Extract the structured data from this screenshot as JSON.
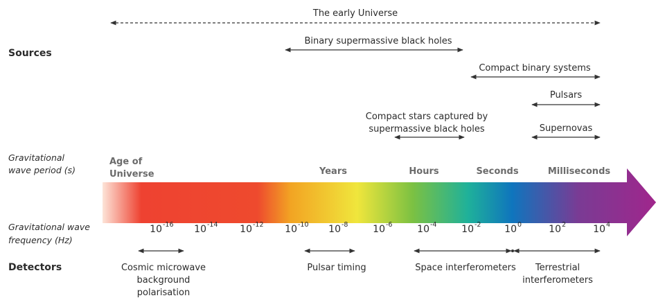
{
  "sections": {
    "sources": "Sources",
    "period": [
      "Gravitational",
      "wave period (s)"
    ],
    "frequency": [
      "Gravitational wave",
      "frequency (Hz)"
    ],
    "detectors": "Detectors"
  },
  "sources": [
    {
      "lines": [
        "The early Universe"
      ]
    },
    {
      "lines": [
        "Binary supermassive black holes"
      ]
    },
    {
      "lines": [
        "Compact binary systems"
      ]
    },
    {
      "lines": [
        "Pulsars"
      ]
    },
    {
      "lines": [
        "Compact stars captured by",
        "supermassive black holes"
      ]
    },
    {
      "lines": [
        "Supernovas"
      ]
    }
  ],
  "periods": [
    {
      "lines": [
        "Age of",
        "Universe"
      ]
    },
    {
      "lines": [
        "Years"
      ]
    },
    {
      "lines": [
        "Hours"
      ]
    },
    {
      "lines": [
        "Seconds"
      ]
    },
    {
      "lines": [
        "Milliseconds"
      ]
    }
  ],
  "frequency_ticks": [
    {
      "base": "10",
      "exponent": "-16"
    },
    {
      "base": "10",
      "exponent": "-14"
    },
    {
      "base": "10",
      "exponent": "-12"
    },
    {
      "base": "10",
      "exponent": "-10"
    },
    {
      "base": "10",
      "exponent": "-8"
    },
    {
      "base": "10",
      "exponent": "-6"
    },
    {
      "base": "10",
      "exponent": "-4"
    },
    {
      "base": "10",
      "exponent": "-2"
    },
    {
      "base": "10",
      "exponent": "0"
    },
    {
      "base": "10",
      "exponent": "2"
    },
    {
      "base": "10",
      "exponent": "4"
    }
  ],
  "detectors": [
    {
      "lines": [
        "Cosmic microwave",
        "background",
        "polarisation"
      ]
    },
    {
      "lines": [
        "Pulsar timing"
      ]
    },
    {
      "lines": [
        "Space interferometers"
      ]
    },
    {
      "lines": [
        "Terrestrial",
        "interferometers"
      ]
    }
  ]
}
